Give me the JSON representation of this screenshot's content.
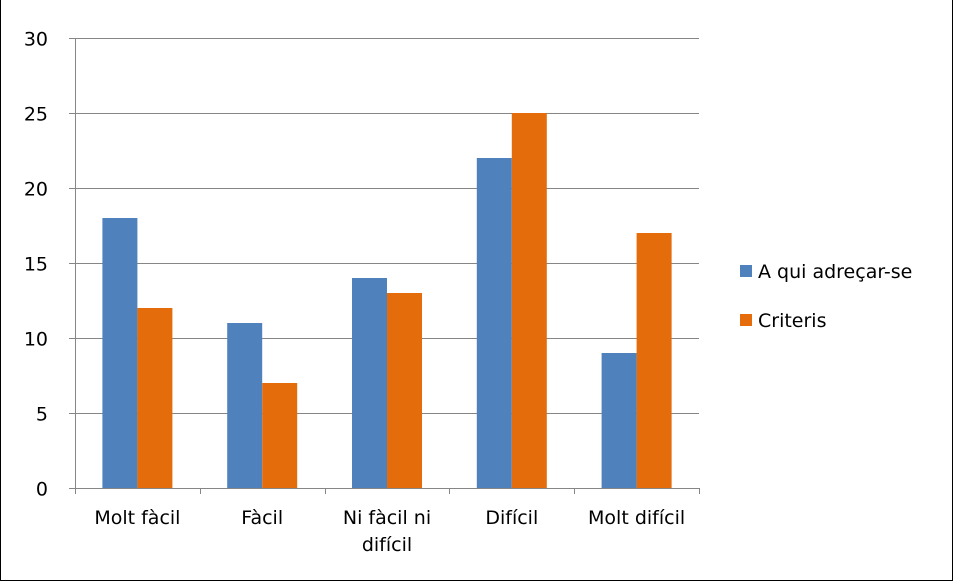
{
  "chart_data": {
    "type": "bar",
    "title": "",
    "xlabel": "",
    "ylabel": "",
    "categories": [
      "Molt fàcil",
      "Fàcil",
      "Ni fàcil ni difícil",
      "Difícil",
      "Molt difícil"
    ],
    "category_lines": [
      [
        "Molt fàcil"
      ],
      [
        "Fàcil"
      ],
      [
        "Ni fàcil ni",
        "difícil"
      ],
      [
        "Difícil"
      ],
      [
        "Molt difícil"
      ]
    ],
    "series": [
      {
        "name": "A qui adreçar-se",
        "color": "#4F81BD",
        "values": [
          18,
          11,
          14,
          22,
          9
        ]
      },
      {
        "name": "Criteris",
        "color": "#E46C0A",
        "values": [
          12,
          7,
          13,
          25,
          17
        ]
      }
    ],
    "ylim": [
      0,
      30
    ],
    "yticks": [
      0,
      5,
      10,
      15,
      20,
      25,
      30
    ],
    "grid": true,
    "legend_position": "right"
  }
}
